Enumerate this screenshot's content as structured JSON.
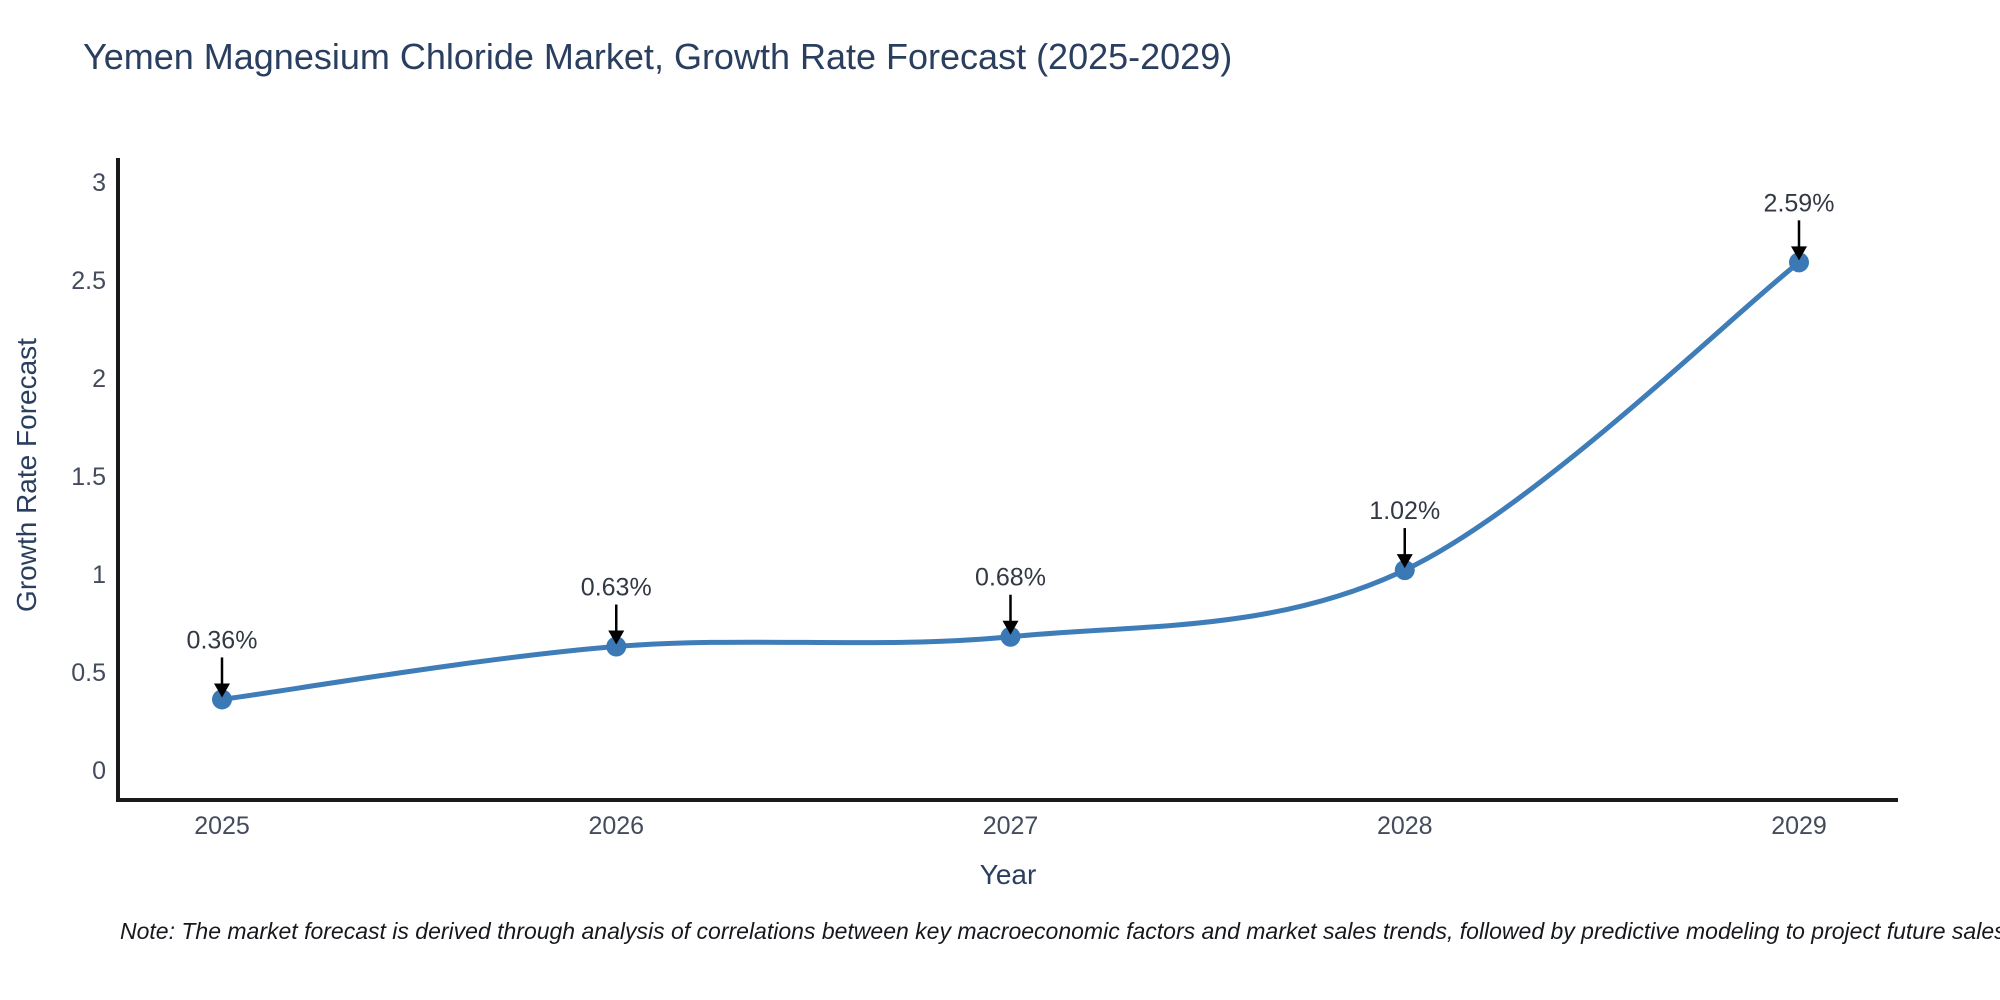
{
  "header": {
    "title": "Yemen Magnesium Chloride Market, Growth Rate Forecast (2025-2029)"
  },
  "footnote": {
    "text": "Note: The market forecast is derived through analysis of correlations between key macroeconomic factors and market sales trends, followed by predictive modeling to project future sales"
  },
  "chart_data": {
    "type": "line",
    "title": "Yemen Magnesium Chloride Market, Growth Rate Forecast (2025-2029)",
    "xlabel": "Year",
    "ylabel": "Growth Rate Forecast",
    "categories": [
      "2025",
      "2026",
      "2027",
      "2028",
      "2029"
    ],
    "x": [
      2025,
      2026,
      2027,
      2028,
      2029
    ],
    "series": [
      {
        "name": "Growth Rate Forecast",
        "values": [
          0.36,
          0.63,
          0.68,
          1.02,
          2.59
        ]
      }
    ],
    "annotations": [
      "0.36%",
      "0.63%",
      "0.68%",
      "1.02%",
      "2.59%"
    ],
    "ylim": [
      0,
      3
    ],
    "yticks": [
      0,
      0.5,
      1,
      1.5,
      2,
      2.5,
      3
    ],
    "ytick_labels": [
      "0",
      "0.5",
      "1",
      "1.5",
      "2",
      "2.5",
      "3"
    ],
    "grid": false,
    "legend": false,
    "line_shape": "spline",
    "colors": {
      "line": "#3f7db9",
      "marker": "#3a79b5",
      "axis": "#1a1a1a",
      "heading_text": "#2a3f5f",
      "tick_text": "#434b5c",
      "annotation_text": "#333944",
      "arrow": "#000000",
      "background": "#ffffff"
    }
  }
}
